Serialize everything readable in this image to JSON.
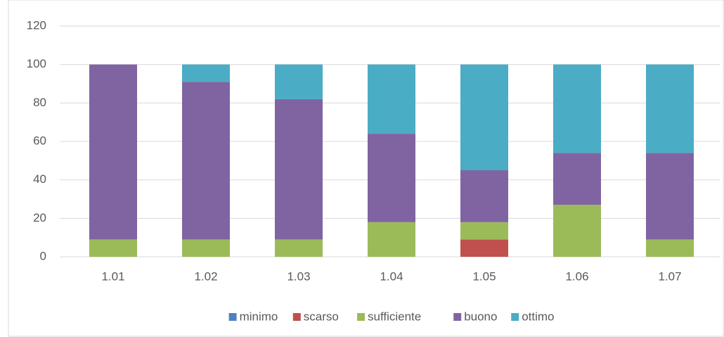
{
  "chart_data": {
    "type": "stacked_bar",
    "categories": [
      "1.01",
      "1.02",
      "1.03",
      "1.04",
      "1.05",
      "1.06",
      "1.07"
    ],
    "series": [
      {
        "name": "minimo",
        "color": "#4f81bd",
        "values": [
          0,
          0,
          0,
          0,
          0,
          0,
          0
        ]
      },
      {
        "name": "scarso",
        "color": "#c0504d",
        "values": [
          0,
          0,
          0,
          0,
          9,
          0,
          0
        ]
      },
      {
        "name": "sufficiente",
        "color": "#9bbb59",
        "values": [
          9,
          9,
          9,
          18,
          9,
          27,
          9
        ]
      },
      {
        "name": "buono",
        "color": "#8064a2",
        "values": [
          91,
          82,
          73,
          46,
          27,
          27,
          45
        ]
      },
      {
        "name": "ottimo",
        "color": "#4bacc6",
        "values": [
          0,
          9,
          18,
          36,
          55,
          46,
          46
        ]
      }
    ],
    "ylim": [
      0,
      120
    ],
    "yticks": [
      0,
      20,
      40,
      60,
      80,
      100,
      120
    ],
    "grid": true,
    "legend": "bottom"
  }
}
